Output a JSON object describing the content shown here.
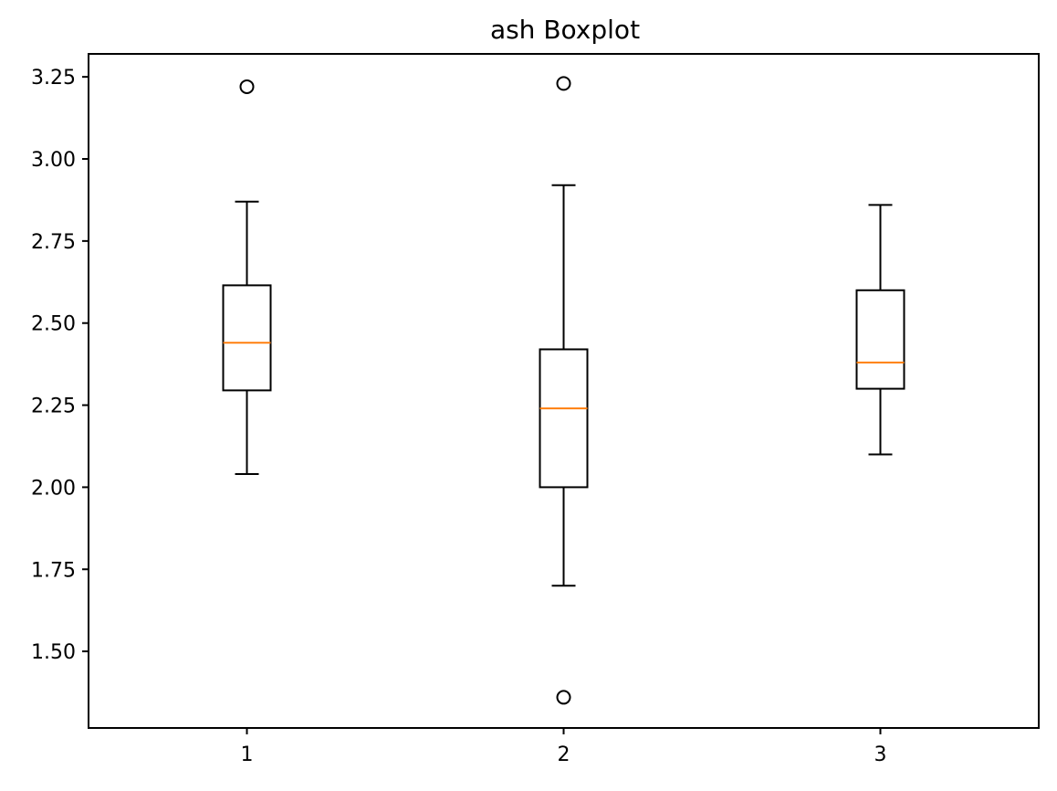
{
  "chart_data": {
    "type": "boxplot",
    "title": "ash Boxplot",
    "xlabel": "",
    "ylabel": "",
    "categories": [
      "1",
      "2",
      "3"
    ],
    "ylim": [
      1.2666,
      3.32
    ],
    "yticks": [
      1.5,
      1.75,
      2.0,
      2.25,
      2.5,
      2.75,
      3.0,
      3.25
    ],
    "ytick_labels": [
      "1.50",
      "1.75",
      "2.00",
      "2.25",
      "2.50",
      "2.75",
      "3.00",
      "3.25"
    ],
    "grid": false,
    "boxes": [
      {
        "category": "1",
        "whisker_low": 2.04,
        "q1": 2.295,
        "median": 2.44,
        "q3": 2.615,
        "whisker_high": 2.87,
        "outliers": [
          3.22
        ]
      },
      {
        "category": "2",
        "whisker_low": 1.7,
        "q1": 2.0,
        "median": 2.24,
        "q3": 2.42,
        "whisker_high": 2.92,
        "outliers": [
          3.23,
          1.36
        ]
      },
      {
        "category": "3",
        "whisker_low": 2.1,
        "q1": 2.3,
        "median": 2.38,
        "q3": 2.6,
        "whisker_high": 2.86,
        "outliers": []
      }
    ],
    "colors": {
      "box": "#000000",
      "median": "#ff7f0e",
      "background": "#ffffff"
    }
  }
}
